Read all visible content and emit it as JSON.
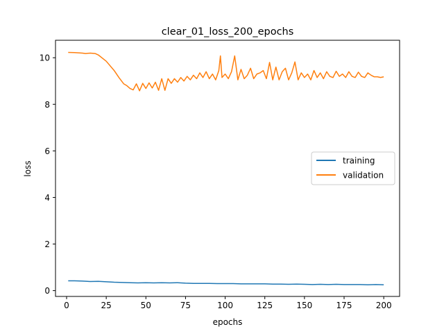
{
  "chart_data": {
    "type": "line",
    "title": "clear_01_loss_200_epochs",
    "xlabel": "epochs",
    "ylabel": "loss",
    "xlim": [
      -7,
      210
    ],
    "ylim": [
      -0.25,
      10.75
    ],
    "x_ticks": [
      0,
      25,
      50,
      75,
      100,
      125,
      150,
      175,
      200
    ],
    "y_ticks": [
      0,
      2,
      4,
      6,
      8,
      10
    ],
    "grid": false,
    "legend_position": "center-right",
    "series": [
      {
        "name": "training",
        "color": "#1f77b4",
        "x": [
          1,
          5,
          10,
          15,
          20,
          25,
          30,
          35,
          40,
          45,
          50,
          55,
          60,
          65,
          70,
          75,
          80,
          85,
          90,
          95,
          100,
          105,
          110,
          115,
          120,
          125,
          130,
          135,
          140,
          145,
          150,
          155,
          160,
          165,
          170,
          175,
          180,
          185,
          190,
          195,
          200
        ],
        "values": [
          0.42,
          0.42,
          0.41,
          0.39,
          0.4,
          0.38,
          0.36,
          0.35,
          0.34,
          0.33,
          0.34,
          0.33,
          0.34,
          0.33,
          0.34,
          0.32,
          0.31,
          0.31,
          0.31,
          0.3,
          0.3,
          0.3,
          0.29,
          0.29,
          0.29,
          0.29,
          0.28,
          0.28,
          0.27,
          0.28,
          0.27,
          0.26,
          0.27,
          0.26,
          0.27,
          0.26,
          0.26,
          0.26,
          0.25,
          0.26,
          0.25
        ]
      },
      {
        "name": "validation",
        "color": "#ff7f0e",
        "x": [
          1,
          5,
          10,
          12,
          15,
          18,
          20,
          25,
          30,
          33,
          36,
          38,
          40,
          42,
          44,
          46,
          48,
          50,
          52,
          54,
          56,
          58,
          60,
          62,
          64,
          66,
          68,
          70,
          72,
          74,
          76,
          78,
          80,
          82,
          84,
          86,
          88,
          90,
          92,
          94,
          96,
          97,
          98,
          100,
          102,
          104,
          106,
          108,
          110,
          112,
          114,
          116,
          118,
          120,
          122,
          124,
          126,
          128,
          130,
          132,
          134,
          136,
          138,
          140,
          142,
          144,
          146,
          148,
          150,
          152,
          154,
          156,
          158,
          160,
          162,
          164,
          166,
          168,
          170,
          172,
          174,
          176,
          178,
          180,
          182,
          184,
          186,
          188,
          190,
          192,
          194,
          196,
          198,
          200
        ],
        "values": [
          10.23,
          10.22,
          10.2,
          10.18,
          10.2,
          10.18,
          10.12,
          9.85,
          9.45,
          9.15,
          8.88,
          8.8,
          8.68,
          8.62,
          8.88,
          8.58,
          8.9,
          8.68,
          8.92,
          8.7,
          8.95,
          8.6,
          9.1,
          8.6,
          9.1,
          8.9,
          9.1,
          8.95,
          9.15,
          9.0,
          9.2,
          9.05,
          9.25,
          9.1,
          9.35,
          9.15,
          9.4,
          9.1,
          9.3,
          9.05,
          9.45,
          10.08,
          9.15,
          9.3,
          9.1,
          9.4,
          10.08,
          9.05,
          9.5,
          9.1,
          9.25,
          9.55,
          9.1,
          9.3,
          9.35,
          9.45,
          9.1,
          9.8,
          9.05,
          9.6,
          9.05,
          9.4,
          9.55,
          9.05,
          9.35,
          9.82,
          9.05,
          9.35,
          9.15,
          9.3,
          9.05,
          9.45,
          9.15,
          9.35,
          9.1,
          9.4,
          9.2,
          9.15,
          9.42,
          9.2,
          9.3,
          9.15,
          9.4,
          9.2,
          9.15,
          9.38,
          9.2,
          9.15,
          9.35,
          9.25,
          9.18,
          9.18,
          9.15,
          9.18
        ]
      }
    ]
  }
}
